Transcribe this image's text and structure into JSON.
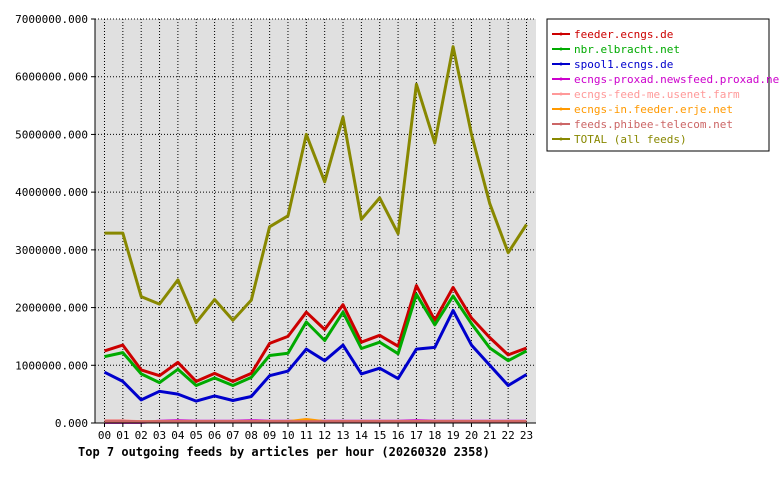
{
  "chart_data": {
    "type": "line",
    "title": "Top 7 outgoing feeds by articles per hour (20260320 2358)",
    "categories": [
      "00",
      "01",
      "02",
      "03",
      "04",
      "05",
      "06",
      "07",
      "08",
      "09",
      "10",
      "11",
      "12",
      "13",
      "14",
      "15",
      "16",
      "17",
      "18",
      "19",
      "20",
      "21",
      "22",
      "23"
    ],
    "y_tick_labels": [
      "0.000",
      "1000000.000",
      "2000000.000",
      "3000000.000",
      "4000000.000",
      "5000000.000",
      "6000000.000",
      "7000000.000"
    ],
    "ylim": [
      0,
      7000000
    ],
    "grid": true,
    "legend_position": "top-right",
    "series": [
      {
        "name": "feeder.ecngs.de",
        "color": "#cc0000",
        "values": [
          1250000,
          1350000,
          920000,
          820000,
          1050000,
          720000,
          860000,
          720000,
          860000,
          1380000,
          1500000,
          1920000,
          1620000,
          2050000,
          1400000,
          1520000,
          1330000,
          2380000,
          1780000,
          2350000,
          1820000,
          1480000,
          1180000,
          1300000
        ]
      },
      {
        "name": "nbr.elbracht.net",
        "color": "#00aa00",
        "values": [
          1150000,
          1220000,
          850000,
          700000,
          930000,
          650000,
          780000,
          650000,
          790000,
          1170000,
          1210000,
          1750000,
          1430000,
          1920000,
          1290000,
          1400000,
          1200000,
          2230000,
          1700000,
          2200000,
          1720000,
          1300000,
          1080000,
          1250000
        ]
      },
      {
        "name": "spool1.ecngs.de",
        "color": "#0000cc",
        "values": [
          880000,
          720000,
          400000,
          550000,
          500000,
          380000,
          470000,
          390000,
          460000,
          820000,
          900000,
          1280000,
          1080000,
          1350000,
          850000,
          950000,
          770000,
          1280000,
          1310000,
          1950000,
          1350000,
          1000000,
          650000,
          840000
        ]
      },
      {
        "name": "ecngs-proxad.newsfeed.proxad.net",
        "color": "#cc00cc",
        "values": [
          10000,
          10000,
          10000,
          30000,
          40000,
          30000,
          30000,
          30000,
          40000,
          30000,
          30000,
          30000,
          30000,
          30000,
          30000,
          30000,
          30000,
          40000,
          30000,
          30000,
          30000,
          30000,
          30000,
          30000
        ]
      },
      {
        "name": "ecngs-feed-me.usenet.farm",
        "color": "#ff9999",
        "values": [
          40000,
          40000,
          20000,
          20000,
          20000,
          20000,
          20000,
          20000,
          20000,
          20000,
          20000,
          20000,
          20000,
          20000,
          20000,
          20000,
          20000,
          20000,
          20000,
          20000,
          20000,
          20000,
          20000,
          20000
        ]
      },
      {
        "name": "ecngs-in.feeder.erje.net",
        "color": "#ff9900",
        "values": [
          20000,
          20000,
          20000,
          20000,
          20000,
          20000,
          20000,
          20000,
          20000,
          20000,
          20000,
          60000,
          20000,
          20000,
          20000,
          20000,
          20000,
          20000,
          20000,
          20000,
          20000,
          20000,
          20000,
          20000
        ]
      },
      {
        "name": "feeds.phibee-telecom.net",
        "color": "#cc6666",
        "values": [
          30000,
          30000,
          20000,
          20000,
          20000,
          20000,
          20000,
          20000,
          20000,
          20000,
          20000,
          20000,
          20000,
          20000,
          20000,
          20000,
          20000,
          20000,
          20000,
          20000,
          20000,
          20000,
          20000,
          20000
        ]
      },
      {
        "name": "TOTAL (all feeds)",
        "color": "#888800",
        "values": [
          3290000,
          3290000,
          2190000,
          2060000,
          2480000,
          1740000,
          2140000,
          1780000,
          2130000,
          3400000,
          3590000,
          5000000,
          4180000,
          5300000,
          3530000,
          3900000,
          3280000,
          5870000,
          4850000,
          6520000,
          5000000,
          3800000,
          2950000,
          3440000
        ]
      }
    ]
  }
}
